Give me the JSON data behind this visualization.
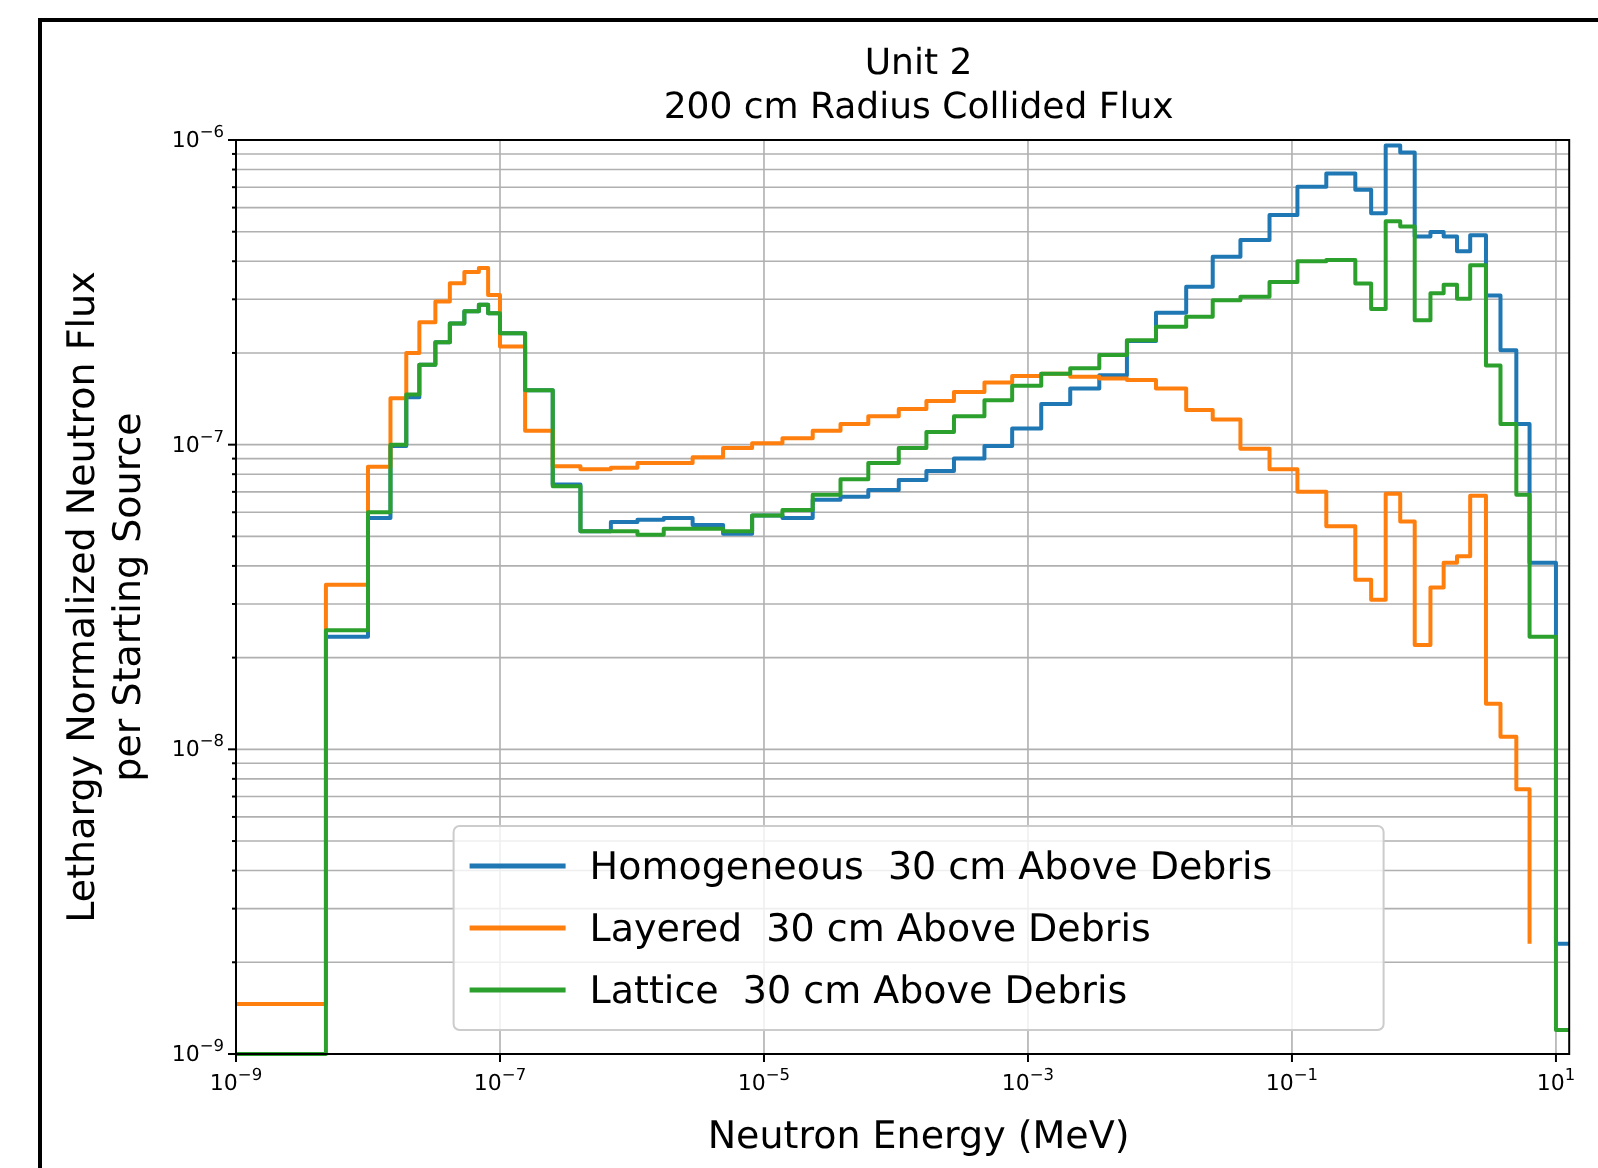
{
  "chart_data": {
    "type": "step",
    "title": "Unit 2",
    "subtitle": "200 cm Radius Collided Flux",
    "xlabel": "Neutron Energy (MeV)",
    "ylabel": "Lethargy Normalized Neutron Flux\nper Starting Source",
    "log": "xy",
    "grid": true,
    "legend": "bottom",
    "line_style": "solid",
    "xlim": [
      1e-09,
      12.6
    ],
    "ylim": [
      1e-09,
      1e-06
    ],
    "xticks": [
      {
        "value": 1e-09,
        "label": "10$^{−9}$"
      },
      {
        "value": 1e-07,
        "label": "10$^{−7}$"
      },
      {
        "value": 1e-05,
        "label": "10$^{−5}$"
      },
      {
        "value": 0.001,
        "label": "10$^{−3}$"
      },
      {
        "value": 0.1,
        "label": "10$^{−1}$"
      },
      {
        "value": 10,
        "label": "10$^{1}$"
      }
    ],
    "yticks": [
      {
        "value": 1e-09,
        "label": "10$^{−9}$"
      },
      {
        "value": 2e-09,
        "label": null
      },
      {
        "value": 3e-09,
        "label": null
      },
      {
        "value": 4e-09,
        "label": null
      },
      {
        "value": 5e-09,
        "label": null
      },
      {
        "value": 6e-09,
        "label": null
      },
      {
        "value": 7e-09,
        "label": null
      },
      {
        "value": 8e-09,
        "label": null
      },
      {
        "value": 9e-09,
        "label": null
      },
      {
        "value": 1e-08,
        "label": "10$^{−8}$"
      },
      {
        "value": 2e-08,
        "label": null
      },
      {
        "value": 3e-08,
        "label": null
      },
      {
        "value": 4e-08,
        "label": null
      },
      {
        "value": 5e-08,
        "label": null
      },
      {
        "value": 6e-08,
        "label": null
      },
      {
        "value": 7e-08,
        "label": null
      },
      {
        "value": 8e-08,
        "label": null
      },
      {
        "value": 9e-08,
        "label": null
      },
      {
        "value": 1e-07,
        "label": "10$^{−7}$"
      },
      {
        "value": 2e-07,
        "label": null
      },
      {
        "value": 3e-07,
        "label": null
      },
      {
        "value": 4e-07,
        "label": null
      },
      {
        "value": 5e-07,
        "label": null
      },
      {
        "value": 6e-07,
        "label": null
      },
      {
        "value": 7e-07,
        "label": null
      },
      {
        "value": 8e-07,
        "label": null
      },
      {
        "value": 9e-07,
        "label": null
      },
      {
        "value": 1e-06,
        "label": "10$^{−6}$"
      }
    ],
    "x": [
      1e-09,
      4.8e-09,
      1e-08,
      1.48e-08,
      1.95e-08,
      2.45e-08,
      3.24e-08,
      4.17e-08,
      5.37e-08,
      6.92e-08,
      8.13e-08,
      1e-07,
      1.55e-07,
      2.51e-07,
      4.07e-07,
      6.92e-07,
      1.1e-06,
      1.74e-06,
      2.88e-06,
      4.9e-06,
      8.13e-06,
      1.38e-05,
      2.34e-05,
      3.8e-05,
      6.17e-05,
      0.000105,
      0.00017,
      0.000275,
      0.000468,
      0.000759,
      0.00126,
      0.00209,
      0.00347,
      0.00562,
      0.00933,
      0.0158,
      0.0251,
      0.0407,
      0.0676,
      0.11,
      0.182,
      0.302,
      0.398,
      0.513,
      0.661,
      0.851,
      1.12,
      1.41,
      1.78,
      2.24,
      2.95,
      3.8,
      5.01,
      6.31,
      10,
      12.6
    ],
    "series": [
      {
        "name": "Homogeneous  30 cm Above Debris",
        "color": "#1f77b4",
        "values": [
          null,
          2.34e-08,
          5.75e-08,
          9.9e-08,
          1.43e-07,
          1.83e-07,
          2.17e-07,
          2.5e-07,
          2.74e-07,
          2.88e-07,
          2.7e-07,
          2.32e-07,
          1.51e-07,
          7.4e-08,
          5.2e-08,
          5.57e-08,
          5.67e-08,
          5.74e-08,
          5.45e-08,
          5.1e-08,
          5.86e-08,
          5.74e-08,
          6.6e-08,
          6.75e-08,
          7.1e-08,
          7.65e-08,
          8.2e-08,
          9e-08,
          9.9e-08,
          1.13e-07,
          1.36e-07,
          1.53e-07,
          1.69e-07,
          2.19e-07,
          2.71e-07,
          3.3e-07,
          4.14e-07,
          4.7e-07,
          5.67e-07,
          7.03e-07,
          7.77e-07,
          6.86e-07,
          5.75e-07,
          9.6e-07,
          9.1e-07,
          4.82e-07,
          4.99e-07,
          4.82e-07,
          4.31e-07,
          4.87e-07,
          3.09e-07,
          2.04e-07,
          1.17e-07,
          4.1e-08,
          2.3e-09,
          2.3e-09
        ]
      },
      {
        "name": "Layered  30 cm Above Debris",
        "color": "#ff7f0e",
        "values": [
          1.46e-09,
          3.47e-08,
          8.47e-08,
          1.42e-07,
          2e-07,
          2.52e-07,
          2.95e-07,
          3.39e-07,
          3.69e-07,
          3.8e-07,
          3.1e-07,
          2.1e-07,
          1.11e-07,
          8.5e-08,
          8.3e-08,
          8.4e-08,
          8.7e-08,
          8.7e-08,
          9.1e-08,
          9.75e-08,
          1.01e-07,
          1.05e-07,
          1.11e-07,
          1.17e-07,
          1.24e-07,
          1.31e-07,
          1.39e-07,
          1.49e-07,
          1.6e-07,
          1.68e-07,
          1.71e-07,
          1.67e-07,
          1.65e-07,
          1.63e-07,
          1.53e-07,
          1.3e-07,
          1.21e-07,
          9.7e-08,
          8.3e-08,
          7e-08,
          5.4e-08,
          3.6e-08,
          3.1e-08,
          6.9e-08,
          5.6e-08,
          2.2e-08,
          3.4e-08,
          4.1e-08,
          4.3e-08,
          6.8e-08,
          1.41e-08,
          1.1e-08,
          7.4e-09,
          2.3e-09,
          null,
          null
        ]
      },
      {
        "name": "Lattice  30 cm Above Debris",
        "color": "#2ca02c",
        "values": [
          1e-09,
          2.46e-08,
          6e-08,
          1e-07,
          1.46e-07,
          1.83e-07,
          2.17e-07,
          2.5e-07,
          2.74e-07,
          2.88e-07,
          2.7e-07,
          2.32e-07,
          1.51e-07,
          7.3e-08,
          5.2e-08,
          5.2e-08,
          5.06e-08,
          5.3e-08,
          5.3e-08,
          5.2e-08,
          5.86e-08,
          6.1e-08,
          6.85e-08,
          7.7e-08,
          8.7e-08,
          9.75e-08,
          1.1e-07,
          1.24e-07,
          1.4e-07,
          1.56e-07,
          1.71e-07,
          1.78e-07,
          1.97e-07,
          2.2e-07,
          2.44e-07,
          2.63e-07,
          2.98e-07,
          3.06e-07,
          3.42e-07,
          4e-07,
          4.04e-07,
          3.38e-07,
          2.79e-07,
          5.41e-07,
          5.2e-07,
          2.56e-07,
          3.14e-07,
          3.35e-07,
          3.01e-07,
          3.88e-07,
          1.82e-07,
          1.17e-07,
          6.85e-08,
          2.34e-08,
          1.2e-09,
          1.2e-09
        ]
      }
    ]
  }
}
